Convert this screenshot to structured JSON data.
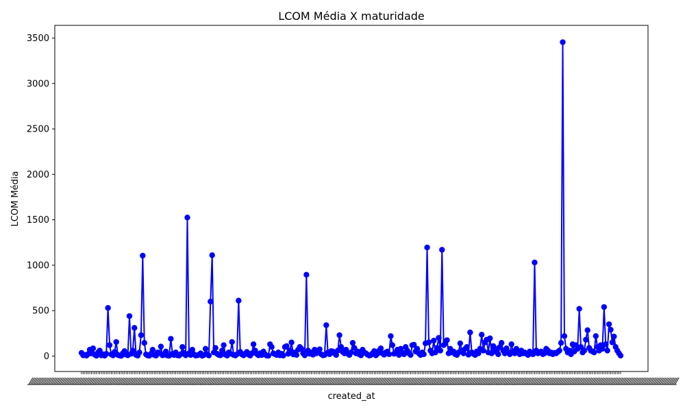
{
  "chart_data": {
    "type": "line",
    "title": "LCOM Média X maturidade",
    "xlabel": "created_at",
    "ylabel": "LCOM Média",
    "ylim": [
      -170,
      3640
    ],
    "yticks": [
      0,
      500,
      1000,
      1500,
      2000,
      2500,
      3000,
      3500
    ],
    "x_tick_labels_legible": false,
    "series_color": "#0000ff",
    "marker": "circle",
    "grid": false,
    "legend": "none",
    "series": [
      {
        "values": [
          35,
          8,
          12,
          5,
          22,
          70,
          30,
          85,
          15,
          3,
          40,
          60,
          8,
          20,
          4,
          25,
          530,
          120,
          18,
          7,
          45,
          155,
          12,
          6,
          2,
          30,
          55,
          15,
          8,
          440,
          25,
          60,
          310,
          12,
          5,
          40,
          230,
          1105,
          145,
          18,
          6,
          3,
          25,
          70,
          12,
          5,
          40,
          30,
          105,
          8,
          15,
          50,
          6,
          3,
          190,
          25,
          12,
          40,
          8,
          5,
          20,
          100,
          35,
          8,
          1525,
          30,
          12,
          70,
          20,
          5,
          8,
          15,
          30,
          3,
          12,
          80,
          22,
          6,
          600,
          1110,
          40,
          90,
          25,
          12,
          8,
          60,
          120,
          15,
          5,
          40,
          25,
          155,
          12,
          6,
          20,
          610,
          45,
          18,
          8,
          25,
          45,
          15,
          5,
          30,
          130,
          60,
          22,
          8,
          30,
          12,
          50,
          18,
          5,
          3,
          130,
          100,
          30,
          20,
          12,
          40,
          8,
          25,
          5,
          100,
          110,
          25,
          60,
          150,
          18,
          40,
          12,
          70,
          100,
          80,
          30,
          8,
          895,
          60,
          25,
          40,
          15,
          70,
          30,
          50,
          75,
          20,
          8,
          12,
          340,
          40,
          20,
          55,
          50,
          30,
          12,
          60,
          230,
          100,
          45,
          30,
          70,
          25,
          12,
          40,
          145,
          90,
          30,
          50,
          18,
          8,
          70,
          40,
          30,
          15,
          5,
          12,
          30,
          55,
          8,
          25,
          60,
          85,
          30,
          15,
          40,
          50,
          20,
          220,
          120,
          25,
          40,
          70,
          12,
          80,
          40,
          20,
          100,
          60,
          30,
          12,
          120,
          125,
          50,
          80,
          30,
          12,
          40,
          20,
          140,
          1195,
          150,
          60,
          30,
          170,
          40,
          90,
          200,
          60,
          1170,
          120,
          140,
          175,
          30,
          80,
          40,
          50,
          20,
          12,
          40,
          140,
          60,
          30,
          80,
          100,
          15,
          260,
          40,
          25,
          12,
          50,
          30,
          80,
          235,
          60,
          150,
          180,
          40,
          195,
          30,
          110,
          50,
          80,
          20,
          100,
          145,
          60,
          30,
          85,
          40,
          20,
          130,
          50,
          30,
          80,
          40,
          20,
          60,
          30,
          40,
          25,
          12,
          50,
          30,
          20,
          1030,
          60,
          30,
          40,
          50,
          20,
          30,
          80,
          60,
          30,
          40,
          20,
          35,
          30,
          45,
          60,
          145,
          3455,
          220,
          80,
          40,
          60,
          20,
          130,
          50,
          120,
          80,
          520,
          100,
          40,
          60,
          180,
          285,
          90,
          60,
          50,
          40,
          220,
          100,
          60,
          120,
          80,
          540,
          130,
          60,
          350,
          290,
          150,
          215,
          100,
          60,
          30,
          5
        ]
      }
    ]
  }
}
